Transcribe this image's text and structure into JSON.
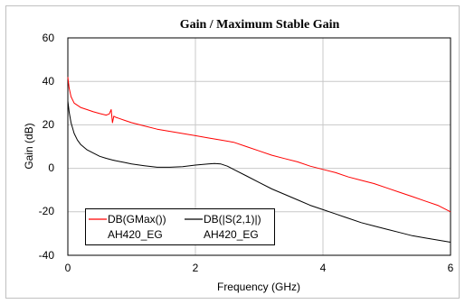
{
  "chart_data": {
    "type": "line",
    "title": "Gain / Maximum Stable Gain",
    "xlabel": "Frequency (GHz)",
    "ylabel": "Gain (dB)",
    "xlim": [
      0,
      6
    ],
    "ylim": [
      -40,
      60
    ],
    "x_ticks": [
      "0",
      "2",
      "4",
      "6"
    ],
    "y_ticks": [
      "60",
      "40",
      "20",
      "0",
      "-20",
      "-40"
    ],
    "grid": true,
    "legend_position": "bottom-left",
    "series": [
      {
        "name": "DB(GMax())",
        "sub_label": "AH420_EG",
        "color": "#ff0000",
        "x": [
          0,
          0.02,
          0.05,
          0.1,
          0.2,
          0.3,
          0.4,
          0.5,
          0.6,
          0.65,
          0.68,
          0.7,
          0.72,
          0.75,
          0.8,
          0.9,
          1.0,
          1.2,
          1.4,
          1.6,
          1.8,
          2.0,
          2.2,
          2.4,
          2.6,
          2.8,
          3.0,
          3.2,
          3.4,
          3.6,
          3.8,
          4.0,
          4.2,
          4.4,
          4.6,
          4.8,
          5.0,
          5.2,
          5.4,
          5.6,
          5.8,
          6.0
        ],
        "y": [
          42,
          37,
          33,
          30,
          28,
          27,
          26,
          25.2,
          24.5,
          25,
          27,
          21,
          24,
          23.5,
          23,
          22,
          21,
          19.5,
          18,
          17,
          16,
          15,
          14,
          13,
          12,
          10,
          8,
          6,
          4.5,
          3,
          1,
          -0.5,
          -2,
          -4,
          -5.5,
          -7,
          -9,
          -11,
          -13,
          -15,
          -17,
          -20
        ]
      },
      {
        "name": "DB(|S(2,1)|)",
        "sub_label": "AH420_EG",
        "color": "#000000",
        "x": [
          0,
          0.02,
          0.05,
          0.1,
          0.15,
          0.2,
          0.3,
          0.4,
          0.5,
          0.6,
          0.7,
          0.8,
          0.9,
          1.0,
          1.2,
          1.4,
          1.6,
          1.8,
          2.0,
          2.2,
          2.3,
          2.4,
          2.5,
          2.6,
          2.8,
          3.0,
          3.2,
          3.4,
          3.6,
          3.8,
          4.0,
          4.2,
          4.4,
          4.6,
          4.8,
          5.0,
          5.2,
          5.4,
          5.6,
          5.8,
          6.0
        ],
        "y": [
          31,
          26,
          21,
          16,
          13,
          11,
          8.5,
          7,
          5.5,
          4.6,
          3.8,
          3.2,
          2.6,
          2,
          1.2,
          0.5,
          0.5,
          0.8,
          1.5,
          2,
          2.2,
          2,
          1,
          -0.5,
          -3.5,
          -6.5,
          -9.5,
          -12,
          -14.5,
          -17,
          -19,
          -21,
          -23,
          -25,
          -26.5,
          -28,
          -29.5,
          -31,
          -32,
          -33,
          -34
        ]
      }
    ]
  }
}
